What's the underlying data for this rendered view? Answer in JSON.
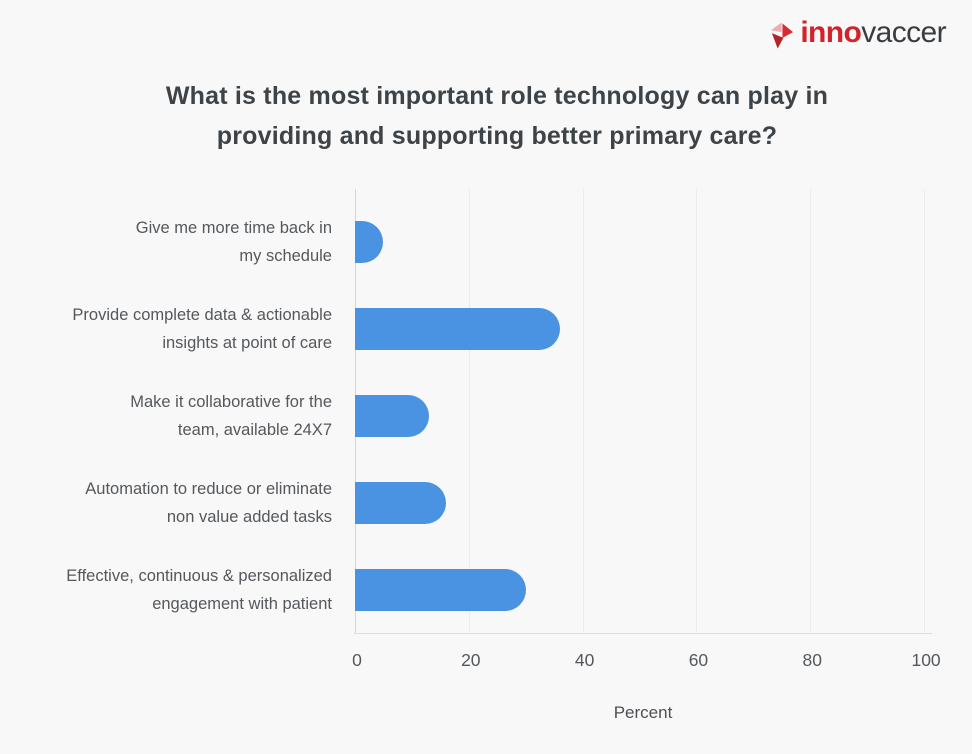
{
  "logo": {
    "brand_bold": "inno",
    "brand_rest": "vaccer",
    "mark": {
      "pale": "#efacb3",
      "red": "#d62b31",
      "dark": "#b5232a"
    },
    "brand_red": "#d2232a",
    "brand_dark": "#393c40"
  },
  "title": {
    "line1": "What is the most important role technology can play in",
    "line2": "providing and supporting better primary care?"
  },
  "chart_data": {
    "type": "bar",
    "orientation": "horizontal",
    "title": "What is the most important role technology can play in providing and supporting better primary care?",
    "categories": [
      "Give me more time back in\nmy schedule",
      "Provide complete data & actionable\ninsights at point of care",
      "Make it collaborative for the\nteam, available 24X7",
      "Automation to reduce or eliminate\nnon value added tasks",
      "Effective, continuous & personalized\nengagement with patient"
    ],
    "values": [
      5,
      36,
      13,
      16,
      30
    ],
    "xlabel": "Percent",
    "xlim": [
      0,
      100
    ],
    "xticks": [
      0,
      20,
      40,
      60,
      80,
      100
    ],
    "bar_color": "#4a92e2",
    "grid": true,
    "background": "#f8f8f8"
  }
}
